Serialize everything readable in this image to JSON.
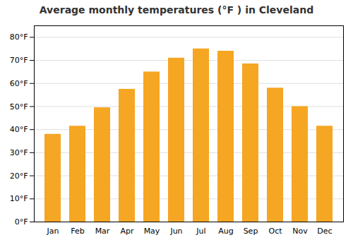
{
  "chart_data": {
    "type": "bar",
    "title": "Average monthly temperatures (°F ) in Cleveland",
    "categories": [
      "Jan",
      "Feb",
      "Mar",
      "Apr",
      "May",
      "Jun",
      "Jul",
      "Aug",
      "Sep",
      "Oct",
      "Nov",
      "Dec"
    ],
    "values": [
      38,
      41.5,
      49.5,
      57.5,
      65,
      71,
      75,
      74,
      68.5,
      58,
      50,
      41.5
    ],
    "color": "#F5A623",
    "ylim": [
      0,
      85
    ],
    "yticks": [
      {
        "value": 0,
        "label": "0°F"
      },
      {
        "value": 10,
        "label": "10°F"
      },
      {
        "value": 20,
        "label": "20°F"
      },
      {
        "value": 30,
        "label": "30°F"
      },
      {
        "value": 40,
        "label": "40°F"
      },
      {
        "value": 50,
        "label": "50°F"
      },
      {
        "value": 60,
        "label": "60°F"
      },
      {
        "value": 70,
        "label": "70°F"
      },
      {
        "value": 80,
        "label": "80°F"
      }
    ],
    "grid": true
  }
}
